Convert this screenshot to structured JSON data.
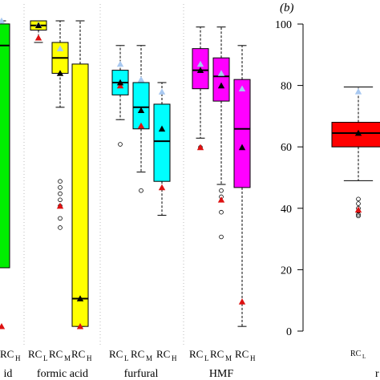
{
  "colors": {
    "green": "#00ee00",
    "yellow": "#ffff00",
    "cyan": "#00ffff",
    "magenta": "#ff00ff",
    "red": "#ff0000",
    "mean_marker": "#000000",
    "blue_marker": "#a8c8f0",
    "red_marker": "#dd1111"
  },
  "chart_data": [
    {
      "type": "box",
      "panel": "a (cropped)",
      "ylim": [
        0,
        100
      ],
      "yaxis_visible": false,
      "categories": [
        "RCL",
        "RCM",
        "RCH"
      ],
      "groups": [
        {
          "name": "id",
          "color": "green",
          "boxes": [
            {
              "category": "RCH",
              "q1": 20,
              "median": 92,
              "q3": 99,
              "mean": null,
              "whisker_low": null,
              "whisker_high": 100,
              "outliers": [],
              "red": 1,
              "blue": 100
            }
          ]
        },
        {
          "name": "formic acid",
          "color": "yellow",
          "boxes": [
            {
              "category": "RCL",
              "q1": 97,
              "median": 98.5,
              "q3": 100,
              "mean": 98.5,
              "whisker_low": 93,
              "whisker_high": 100,
              "outliers": [],
              "red": 94.5,
              "blue": 98.7
            },
            {
              "category": "RCM",
              "q1": 83,
              "median": 88,
              "q3": 93,
              "mean": 83,
              "whisker_low": 72,
              "whisker_high": 100,
              "outliers": [
                48,
                46,
                44,
                42,
                40,
                36,
                33
              ],
              "red": 40,
              "blue": 91
            },
            {
              "category": "RCH",
              "q1": 1,
              "median": 10,
              "q3": 86,
              "mean": 10,
              "whisker_low": 1,
              "whisker_high": 100,
              "outliers": [],
              "red": 1,
              "blue": null
            }
          ]
        },
        {
          "name": "furfural",
          "color": "cyan",
          "boxes": [
            {
              "category": "RCL",
              "q1": 76,
              "median": 80,
              "q3": 84,
              "mean": 80,
              "whisker_low": 68,
              "whisker_high": 92,
              "outliers": [
                60
              ],
              "red": 79,
              "blue": 86
            },
            {
              "category": "RCM",
              "q1": 65,
              "median": 72,
              "q3": 80,
              "mean": 71,
              "whisker_low": 51,
              "whisker_high": 92,
              "outliers": [
                45
              ],
              "red": 66,
              "blue": 81
            },
            {
              "category": "RCH",
              "q1": 48,
              "median": 61,
              "q3": 73,
              "mean": 65,
              "whisker_low": 37,
              "whisker_high": 80,
              "outliers": [],
              "red": 46,
              "blue": 77
            }
          ]
        },
        {
          "name": "HMF",
          "color": "magenta",
          "boxes": [
            {
              "category": "RCL",
              "q1": 78,
              "median": 84,
              "q3": 91,
              "mean": 84,
              "whisker_low": 62,
              "whisker_high": 98,
              "outliers": [
                59
              ],
              "red": 59,
              "blue": 86
            },
            {
              "category": "RCM",
              "q1": 74,
              "median": 82,
              "q3": 88,
              "mean": 79,
              "whisker_low": 47,
              "whisker_high": 98,
              "outliers": [
                45,
                43,
                38,
                30
              ],
              "red": 42,
              "blue": 83
            },
            {
              "category": "RCH",
              "q1": 46,
              "median": 65,
              "q3": 81,
              "mean": 59,
              "whisker_low": 1,
              "whisker_high": 92,
              "outliers": [],
              "red": 9,
              "blue": 78
            }
          ]
        }
      ]
    },
    {
      "type": "box",
      "panel": "b",
      "title": "(b)",
      "ylim": [
        0,
        100
      ],
      "yticks": [
        0,
        20,
        40,
        60,
        80,
        100
      ],
      "categories": [
        "RCL"
      ],
      "boxes": [
        {
          "category": "RCL",
          "color": "red",
          "q1": 60,
          "median": 64.5,
          "q3": 68,
          "mean": 64.5,
          "whisker_low": 49,
          "whisker_high": 79.5,
          "outliers": [
            43,
            41.5,
            40,
            39,
            38,
            37.5
          ],
          "red": 39.5,
          "blue": 78
        }
      ],
      "partial_label": "r"
    }
  ],
  "labels": {
    "group_id": "id",
    "group_formic": "formic acid",
    "group_furfural": "furfural",
    "group_hmf": "HMF",
    "panel_b": "(b)",
    "rc": "RC",
    "sub_l": "L",
    "sub_m": "M",
    "sub_h": "H",
    "tick_100": "100",
    "tick_80": "80",
    "tick_60": "60",
    "tick_40": "40",
    "tick_20": "20",
    "tick_0": "0",
    "partial_r": "r"
  }
}
